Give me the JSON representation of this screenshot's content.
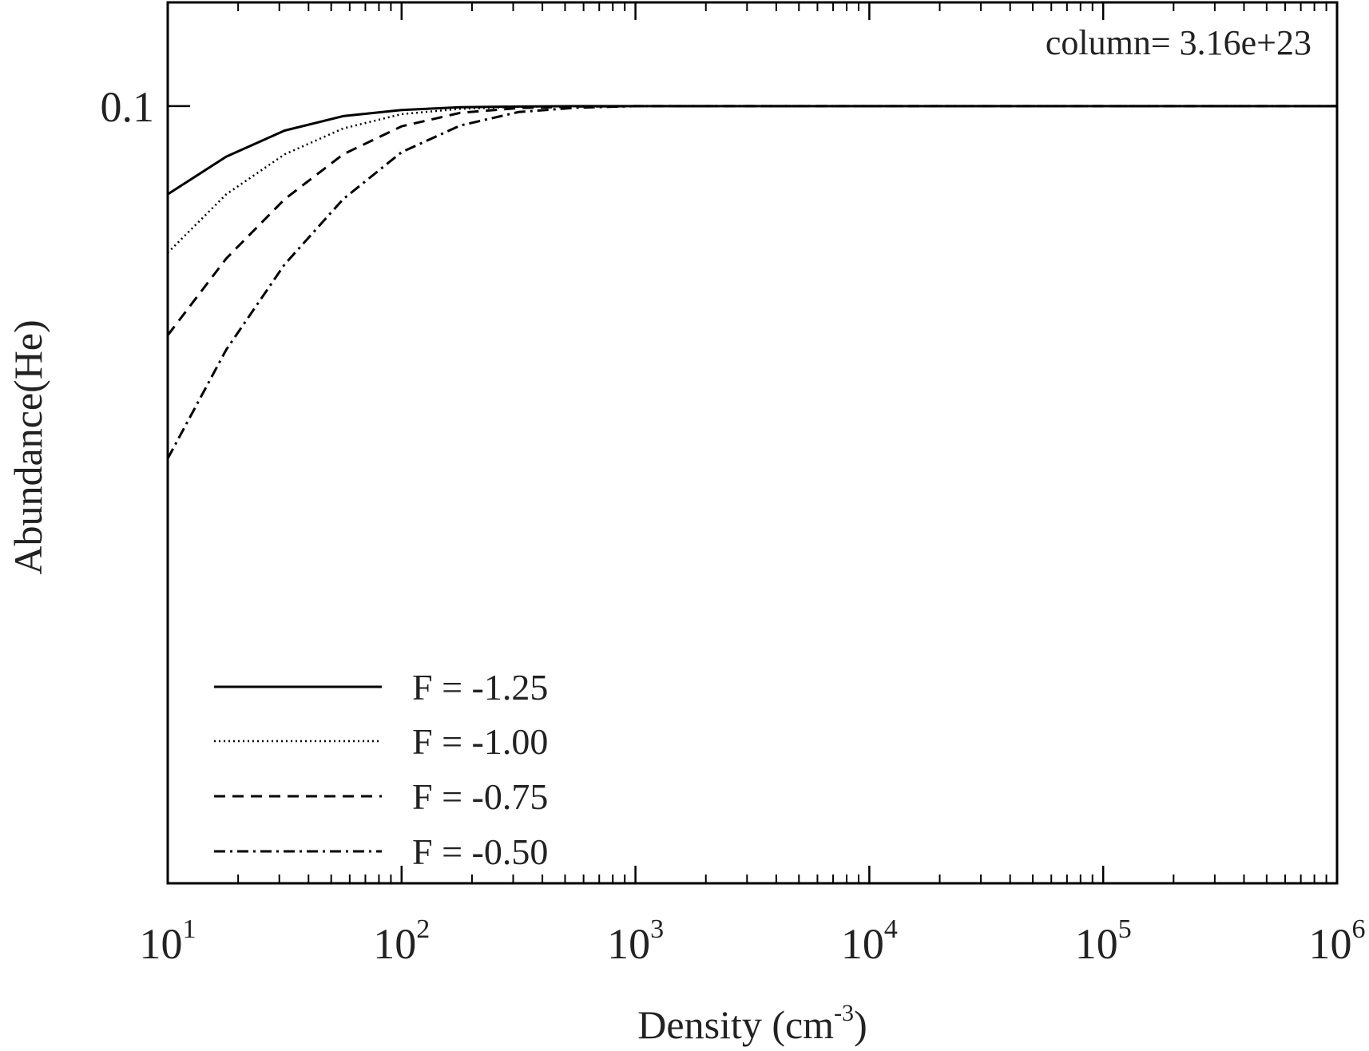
{
  "chart_data": {
    "type": "line",
    "xlabel": "Density (cm-3)",
    "xlabel_parts": {
      "base": "Density (cm",
      "sup": "-3",
      "close": ")"
    },
    "ylabel": "Abundance(He)",
    "annotation": "column= 3.16e+23",
    "x_scale": "log",
    "y_scale": "log",
    "xlim": [
      10,
      1000000
    ],
    "ylim": [
      0.014,
      0.13
    ],
    "x_ticks": [
      {
        "base": "10",
        "exp": "1",
        "value": 10
      },
      {
        "base": "10",
        "exp": "2",
        "value": 100
      },
      {
        "base": "10",
        "exp": "3",
        "value": 1000
      },
      {
        "base": "10",
        "exp": "4",
        "value": 10000
      },
      {
        "base": "10",
        "exp": "5",
        "value": 100000
      },
      {
        "base": "10",
        "exp": "6",
        "value": 1000000
      }
    ],
    "y_ticks": [
      {
        "label": "0.1",
        "value": 0.1
      }
    ],
    "legend_position": "bottom-left",
    "grid": false,
    "series": [
      {
        "name": "F = -1.25",
        "dash": "solid",
        "x": [
          10,
          17.8,
          31.6,
          56.2,
          100,
          178,
          316,
          562,
          1000,
          1000000
        ],
        "y": [
          0.08,
          0.088,
          0.094,
          0.0975,
          0.099,
          0.0997,
          0.0999,
          0.1,
          0.1,
          0.1
        ]
      },
      {
        "name": "F = -1.00",
        "dash": "dotted",
        "x": [
          10,
          17.8,
          31.6,
          56.2,
          100,
          178,
          316,
          562,
          1000,
          1000000
        ],
        "y": [
          0.069,
          0.08,
          0.0885,
          0.0945,
          0.098,
          0.0993,
          0.0998,
          0.1,
          0.1,
          0.1
        ]
      },
      {
        "name": "F = -0.75",
        "dash": "dashed",
        "x": [
          10,
          17.8,
          31.6,
          56.2,
          100,
          178,
          316,
          562,
          1000,
          1000000
        ],
        "y": [
          0.056,
          0.068,
          0.079,
          0.0885,
          0.095,
          0.0983,
          0.0995,
          0.0999,
          0.1,
          0.1
        ]
      },
      {
        "name": "F = -0.50",
        "dash": "dash-dot",
        "x": [
          10,
          17.8,
          31.6,
          56.2,
          100,
          178,
          316,
          562,
          1000,
          1000000
        ],
        "y": [
          0.041,
          0.054,
          0.067,
          0.079,
          0.089,
          0.0952,
          0.0985,
          0.0996,
          0.1,
          0.1
        ]
      }
    ]
  }
}
